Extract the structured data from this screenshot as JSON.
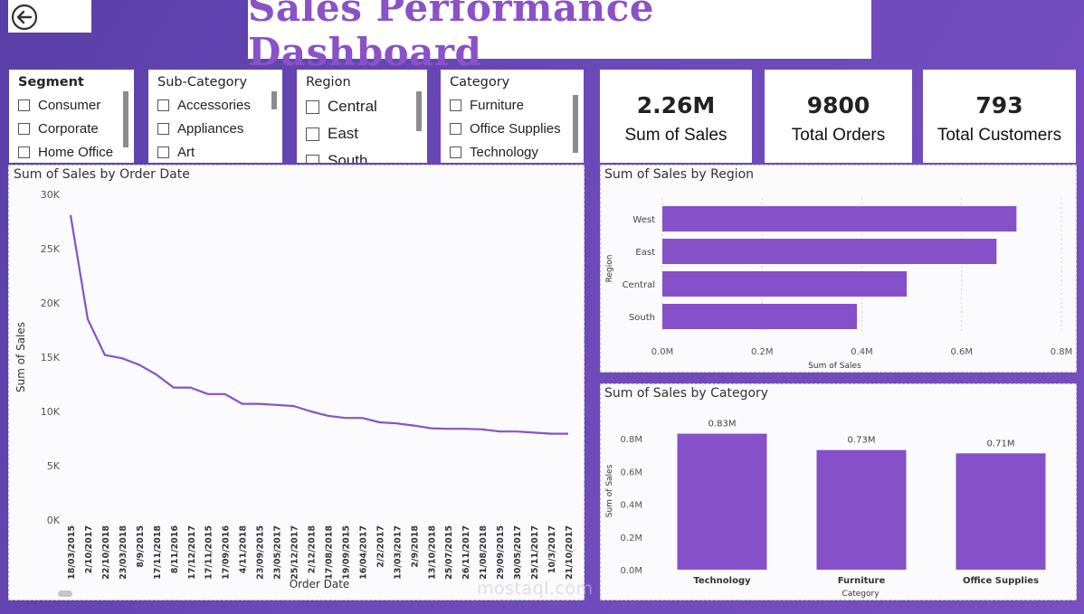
{
  "header": {
    "title": "Sales Performance Dashboard",
    "back_icon": "back-arrow-icon"
  },
  "slicers": {
    "segment": {
      "title": "Segment",
      "options": [
        "Consumer",
        "Corporate",
        "Home Office"
      ]
    },
    "subcategory": {
      "title": "Sub-Category",
      "options": [
        "Accessories",
        "Appliances",
        "Art"
      ]
    },
    "region": {
      "title": "Region",
      "options": [
        "Central",
        "East",
        "South"
      ]
    },
    "category": {
      "title": "Category",
      "options": [
        "Furniture",
        "Office Supplies",
        "Technology"
      ]
    }
  },
  "kpis": [
    {
      "value": "2.26M",
      "label": "Sum of Sales"
    },
    {
      "value": "9800",
      "label": "Total Orders"
    },
    {
      "value": "793",
      "label": "Total Customers"
    }
  ],
  "watermark": "mostaql.com",
  "chart_data": [
    {
      "type": "line",
      "title": "Sum of Sales by Order Date",
      "xlabel": "Order Date",
      "ylabel": "Sum of Sales",
      "ylim": [
        0,
        30000
      ],
      "yticks": [
        "0K",
        "5K",
        "10K",
        "15K",
        "20K",
        "25K",
        "30K"
      ],
      "yticks_values": [
        0,
        5000,
        10000,
        15000,
        20000,
        25000,
        30000
      ],
      "x": [
        "18/03/2015",
        "2/10/2017",
        "22/10/2018",
        "23/03/2018",
        "8/9/2015",
        "17/11/2018",
        "8/11/2016",
        "17/12/2017",
        "17/11/2015",
        "17/09/2016",
        "4/11/2018",
        "23/09/2015",
        "23/05/2017",
        "25/12/2017",
        "2/12/2018",
        "17/08/2018",
        "19/09/2015",
        "16/04/2017",
        "2/2/2017",
        "13/03/2017",
        "2/9/2018",
        "13/10/2018",
        "25/07/2015",
        "26/11/2017",
        "21/08/2018",
        "29/09/2015",
        "30/05/2017",
        "25/11/2017",
        "10/3/2017",
        "21/10/2017"
      ],
      "values": [
        28100,
        18500,
        15200,
        14900,
        14300,
        13400,
        12200,
        12200,
        11600,
        11600,
        10700,
        10700,
        10600,
        10500,
        10000,
        9600,
        9400,
        9400,
        9000,
        8900,
        8700,
        8450,
        8400,
        8400,
        8350,
        8150,
        8150,
        8050,
        7950,
        7950
      ],
      "grid": false
    },
    {
      "type": "bar",
      "orientation": "horizontal",
      "title": "Sum of Sales by Region",
      "xlabel": "Sum of Sales",
      "ylabel": "Region",
      "categories": [
        "West",
        "East",
        "Central",
        "South"
      ],
      "values": [
        0.71,
        0.67,
        0.49,
        0.39
      ],
      "unit": "M",
      "xlim": [
        0,
        0.8
      ],
      "xticks": [
        "0.0M",
        "0.2M",
        "0.4M",
        "0.6M",
        "0.8M"
      ],
      "xticks_values": [
        0,
        0.2,
        0.4,
        0.6,
        0.8
      ],
      "color": "#8650c8",
      "grid": true
    },
    {
      "type": "bar",
      "title": "Sum of Sales by Category",
      "xlabel": "Category",
      "ylabel": "Sum of Sales",
      "categories": [
        "Technology",
        "Furniture",
        "Office Supplies"
      ],
      "values": [
        0.83,
        0.73,
        0.71
      ],
      "data_labels": [
        "0.83M",
        "0.73M",
        "0.71M"
      ],
      "unit": "M",
      "ylim": [
        0,
        0.8
      ],
      "yticks": [
        "0.0M",
        "0.2M",
        "0.4M",
        "0.6M",
        "0.8M"
      ],
      "yticks_values": [
        0,
        0.2,
        0.4,
        0.6,
        0.8
      ],
      "color": "#8650c8",
      "grid": false
    }
  ],
  "colors": {
    "accent": "#8650c8",
    "title": "#8a52c6",
    "line": "#8752c6"
  }
}
